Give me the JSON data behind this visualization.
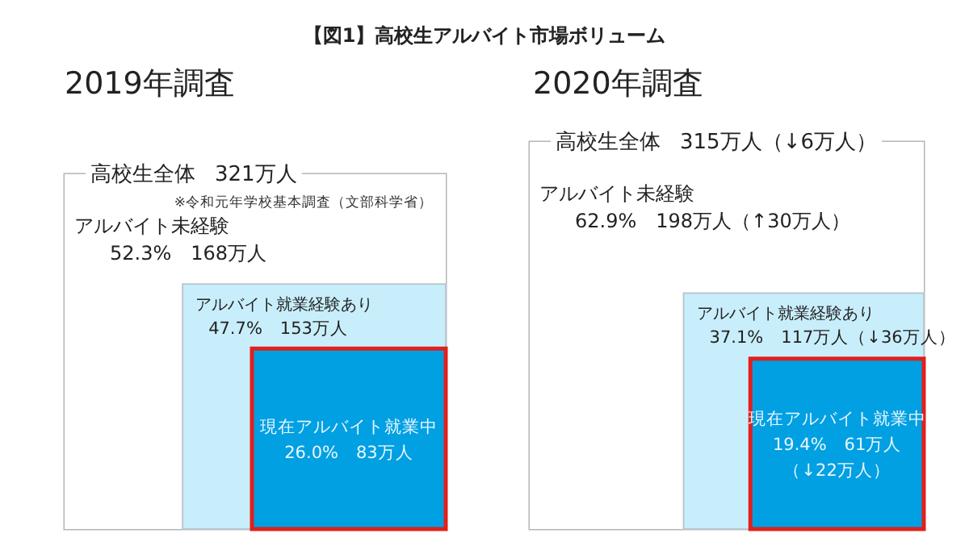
{
  "chart_data": [
    {
      "type": "other",
      "title": "【図1】高校生アルバイト市場ボリューム"
    },
    {
      "type": "other",
      "title": "2019年調査",
      "annotations": [
        "※令和元年学校基本調査（文部科学省）"
      ],
      "categories": [
        "高校生全体",
        "アルバイト未経験",
        "アルバイト就業経験あり",
        "現在アルバイト就業中"
      ],
      "values": [
        321,
        168,
        153,
        83
      ],
      "value_labels": [
        "321万人",
        "52.3%　168万人",
        "47.7%　153万人",
        "26.0%　83万人"
      ],
      "colors": [
        "#ffffff",
        "#ffffff",
        "#c9eefb",
        "#00a0e3"
      ]
    },
    {
      "type": "other",
      "title": "2020年調査",
      "annotations": [
        {
          "text": "（↓22万人）",
          "x": "現在アルバイト就業中"
        }
      ],
      "categories": [
        "高校生全体",
        "アルバイト未経験",
        "アルバイト就業経験あり",
        "現在アルバイト就業中"
      ],
      "values": [
        315,
        198,
        117,
        61
      ],
      "value_labels": [
        "315万人（↓6万人）",
        "62.9%　198万人（↑30万人）",
        "37.1%　117万人（↓36万人）",
        "19.4%　61万人"
      ],
      "colors": [
        "#ffffff",
        "#ffffff",
        "#c9eefb",
        "#00a0e3"
      ]
    }
  ]
}
